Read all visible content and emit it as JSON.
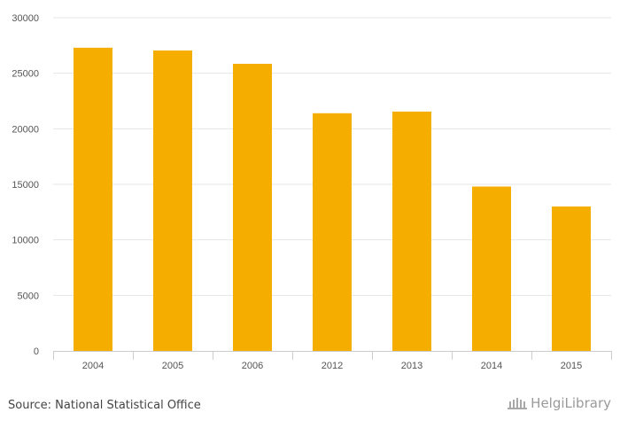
{
  "chart_data": {
    "type": "bar",
    "title": "",
    "xlabel": "",
    "ylabel": "",
    "categories": [
      "2004",
      "2005",
      "2006",
      "2012",
      "2013",
      "2014",
      "2015"
    ],
    "values": [
      27300,
      27050,
      25850,
      21400,
      21550,
      14800,
      13000
    ],
    "ylim": [
      0,
      30000
    ],
    "yticks": [
      0,
      5000,
      10000,
      15000,
      20000,
      25000,
      30000
    ],
    "bar_color": "#f5ae00",
    "grid": true
  },
  "footer": {
    "source": "Source: National Statistical Office",
    "logo_text": "HelgiLibrary"
  }
}
